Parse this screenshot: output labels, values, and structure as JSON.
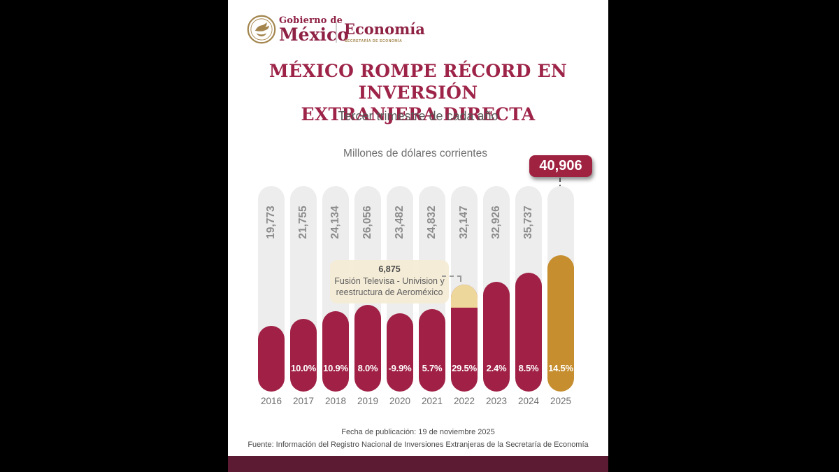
{
  "logo": {
    "gobierno_line1": "Gobierno de",
    "gobierno_line2": "México",
    "secretaria": "Economía",
    "secretaria_sub": "SECRETARÍA DE ECONOMÍA"
  },
  "title": {
    "line1": "MÉXICO ROMPE RÉCORD EN INVERSIÓN",
    "line2": "EXTRANJERA DIRECTA",
    "subtitle": "Tercer trimestre de cada año"
  },
  "chart_data": {
    "type": "bar",
    "title": "Millones de dólares corrientes",
    "unit": "millones de dólares corrientes",
    "categories": [
      "2016",
      "2017",
      "2018",
      "2019",
      "2020",
      "2021",
      "2022",
      "2023",
      "2024",
      "2025"
    ],
    "values": [
      19773,
      21755,
      24134,
      26056,
      23482,
      24832,
      32147,
      32926,
      35737,
      40906
    ],
    "value_labels": [
      "19,773",
      "21,755",
      "24,134",
      "26,056",
      "23,482",
      "24,832",
      "32,147",
      "32,926",
      "35,737",
      "40,906"
    ],
    "growth_pct": [
      "",
      "10.0%",
      "10.9%",
      "8.0%",
      "-9.9%",
      "5.7%",
      "29.5%",
      "2.4%",
      "8.5%",
      "14.5%"
    ],
    "record_badge": "40,906",
    "highlight": {
      "year": "2022",
      "segment_value": 6875,
      "segment_label": "6,875",
      "annotation_line1": "Fusión Televisa - Univision y",
      "annotation_line2": "reestructura de Aeroméxico"
    },
    "ylim": [
      0,
      40906
    ],
    "grid": false,
    "legend": false,
    "colors": {
      "bar_wine": "#a02046",
      "bar_gold": "#c68e2e",
      "segment_cream": "#edd79b",
      "track_gray": "#ededed",
      "badge_wine": "#9f2241",
      "band_dark_wine": "#5c1b33",
      "title_wine": "#9d2348"
    }
  },
  "footer": {
    "publication": "Fecha de publicación: 19 de noviembre 2025",
    "source": "Fuente: Información del Registro Nacional de Inversiones Extranjeras de la Secretaría de Economía"
  }
}
